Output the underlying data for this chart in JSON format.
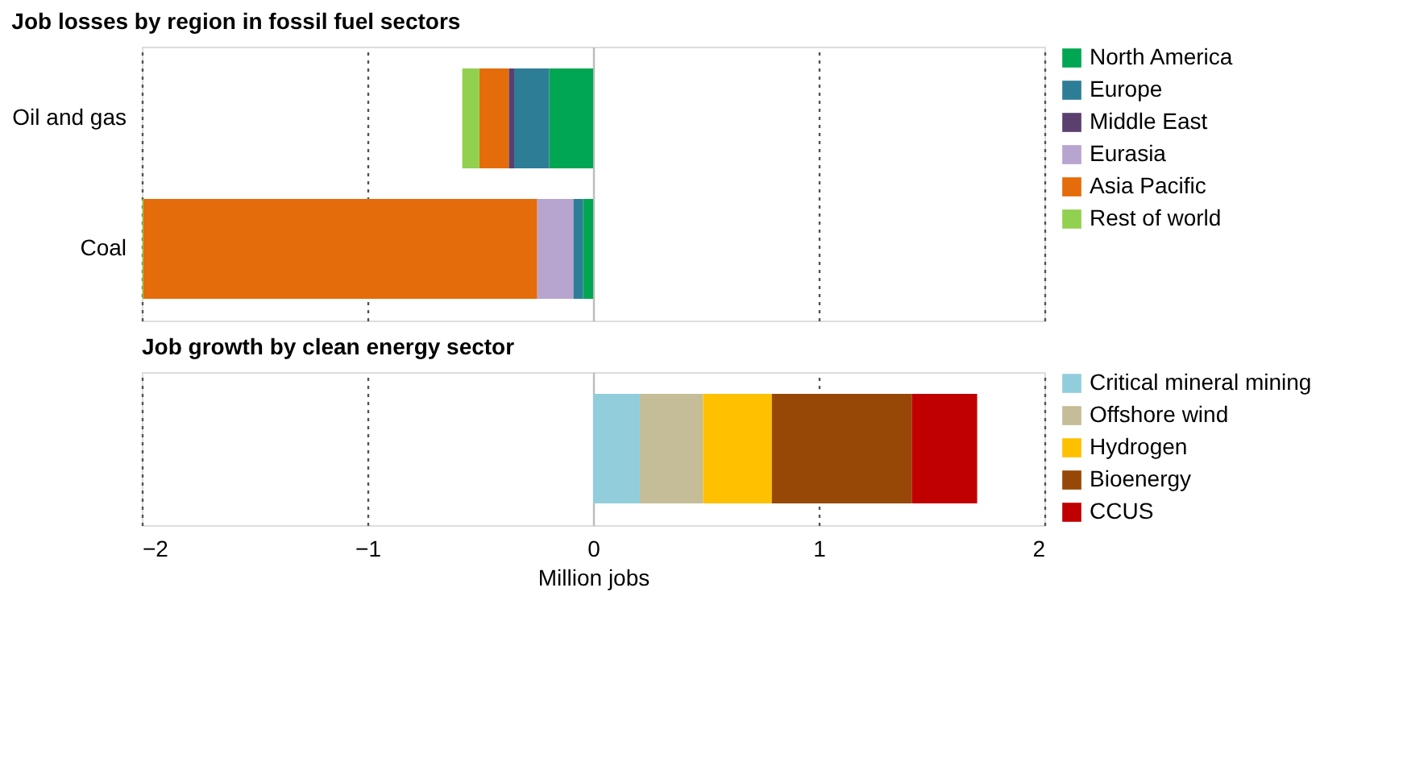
{
  "chart_data": [
    {
      "type": "bar",
      "title": "Job losses by region in fossil fuel sectors",
      "orientation": "horizontal",
      "stacked": true,
      "categories": [
        "Oil and gas",
        "Coal"
      ],
      "xlim": [
        -2,
        2
      ],
      "xticks": [
        -2,
        -1,
        0,
        1,
        2
      ],
      "grid": "x",
      "legend": "right",
      "tick_labels": "y",
      "series": [
        {
          "name": "North America",
          "color": "#00a651",
          "values": [
            -0.195,
            -0.045
          ]
        },
        {
          "name": "Europe",
          "color": "#2e7d97",
          "values": [
            -0.155,
            -0.043
          ]
        },
        {
          "name": "Middle East",
          "color": "#5b3f6e",
          "values": [
            -0.024,
            0
          ]
        },
        {
          "name": "Eurasia",
          "color": "#b7a4cf",
          "values": [
            0,
            -0.16
          ]
        },
        {
          "name": "Asia Pacific",
          "color": "#e46c0a",
          "values": [
            -0.13,
            -1.745
          ]
        },
        {
          "name": "Rest of world",
          "color": "#92d050",
          "values": [
            -0.076,
            -0.005
          ]
        }
      ]
    },
    {
      "type": "bar",
      "title": "Job growth by clean energy sector",
      "orientation": "horizontal",
      "stacked": true,
      "categories": [
        null
      ],
      "xlim": [
        -2,
        2
      ],
      "xticks": [
        -2,
        -1,
        0,
        1,
        2
      ],
      "xlabel": "Million jobs",
      "grid": "x",
      "legend": "right",
      "tick_labels": "x",
      "series": [
        {
          "name": "Critical mineral mining",
          "color": "#92cddc",
          "values": [
            0.207
          ]
        },
        {
          "name": "Offshore wind",
          "color": "#c4bd97",
          "values": [
            0.28
          ]
        },
        {
          "name": "Hydrogen",
          "color": "#ffc000",
          "values": [
            0.305
          ]
        },
        {
          "name": "Bioenergy",
          "color": "#974806",
          "values": [
            0.62
          ]
        },
        {
          "name": "CCUS",
          "color": "#c00000",
          "values": [
            0.29
          ]
        }
      ]
    }
  ]
}
